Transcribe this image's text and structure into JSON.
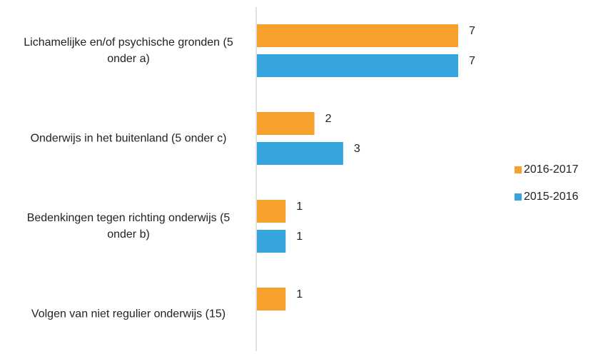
{
  "chart_data": {
    "type": "hbar",
    "categories": [
      "Lichamelijke en/of psychische gronden (5 onder a)",
      "Onderwijs in het buitenland (5 onder c)",
      "Bedenkingen tegen richting onderwijs (5 onder b)",
      "Volgen van niet regulier onderwijs (15)"
    ],
    "series": [
      {
        "name": "2016-2017",
        "color": "#f7a02b",
        "values": [
          7,
          2,
          1,
          1
        ]
      },
      {
        "name": "2015-2016",
        "color": "#36a5dd",
        "values": [
          7,
          3,
          1,
          null
        ]
      }
    ],
    "legend": "right"
  }
}
